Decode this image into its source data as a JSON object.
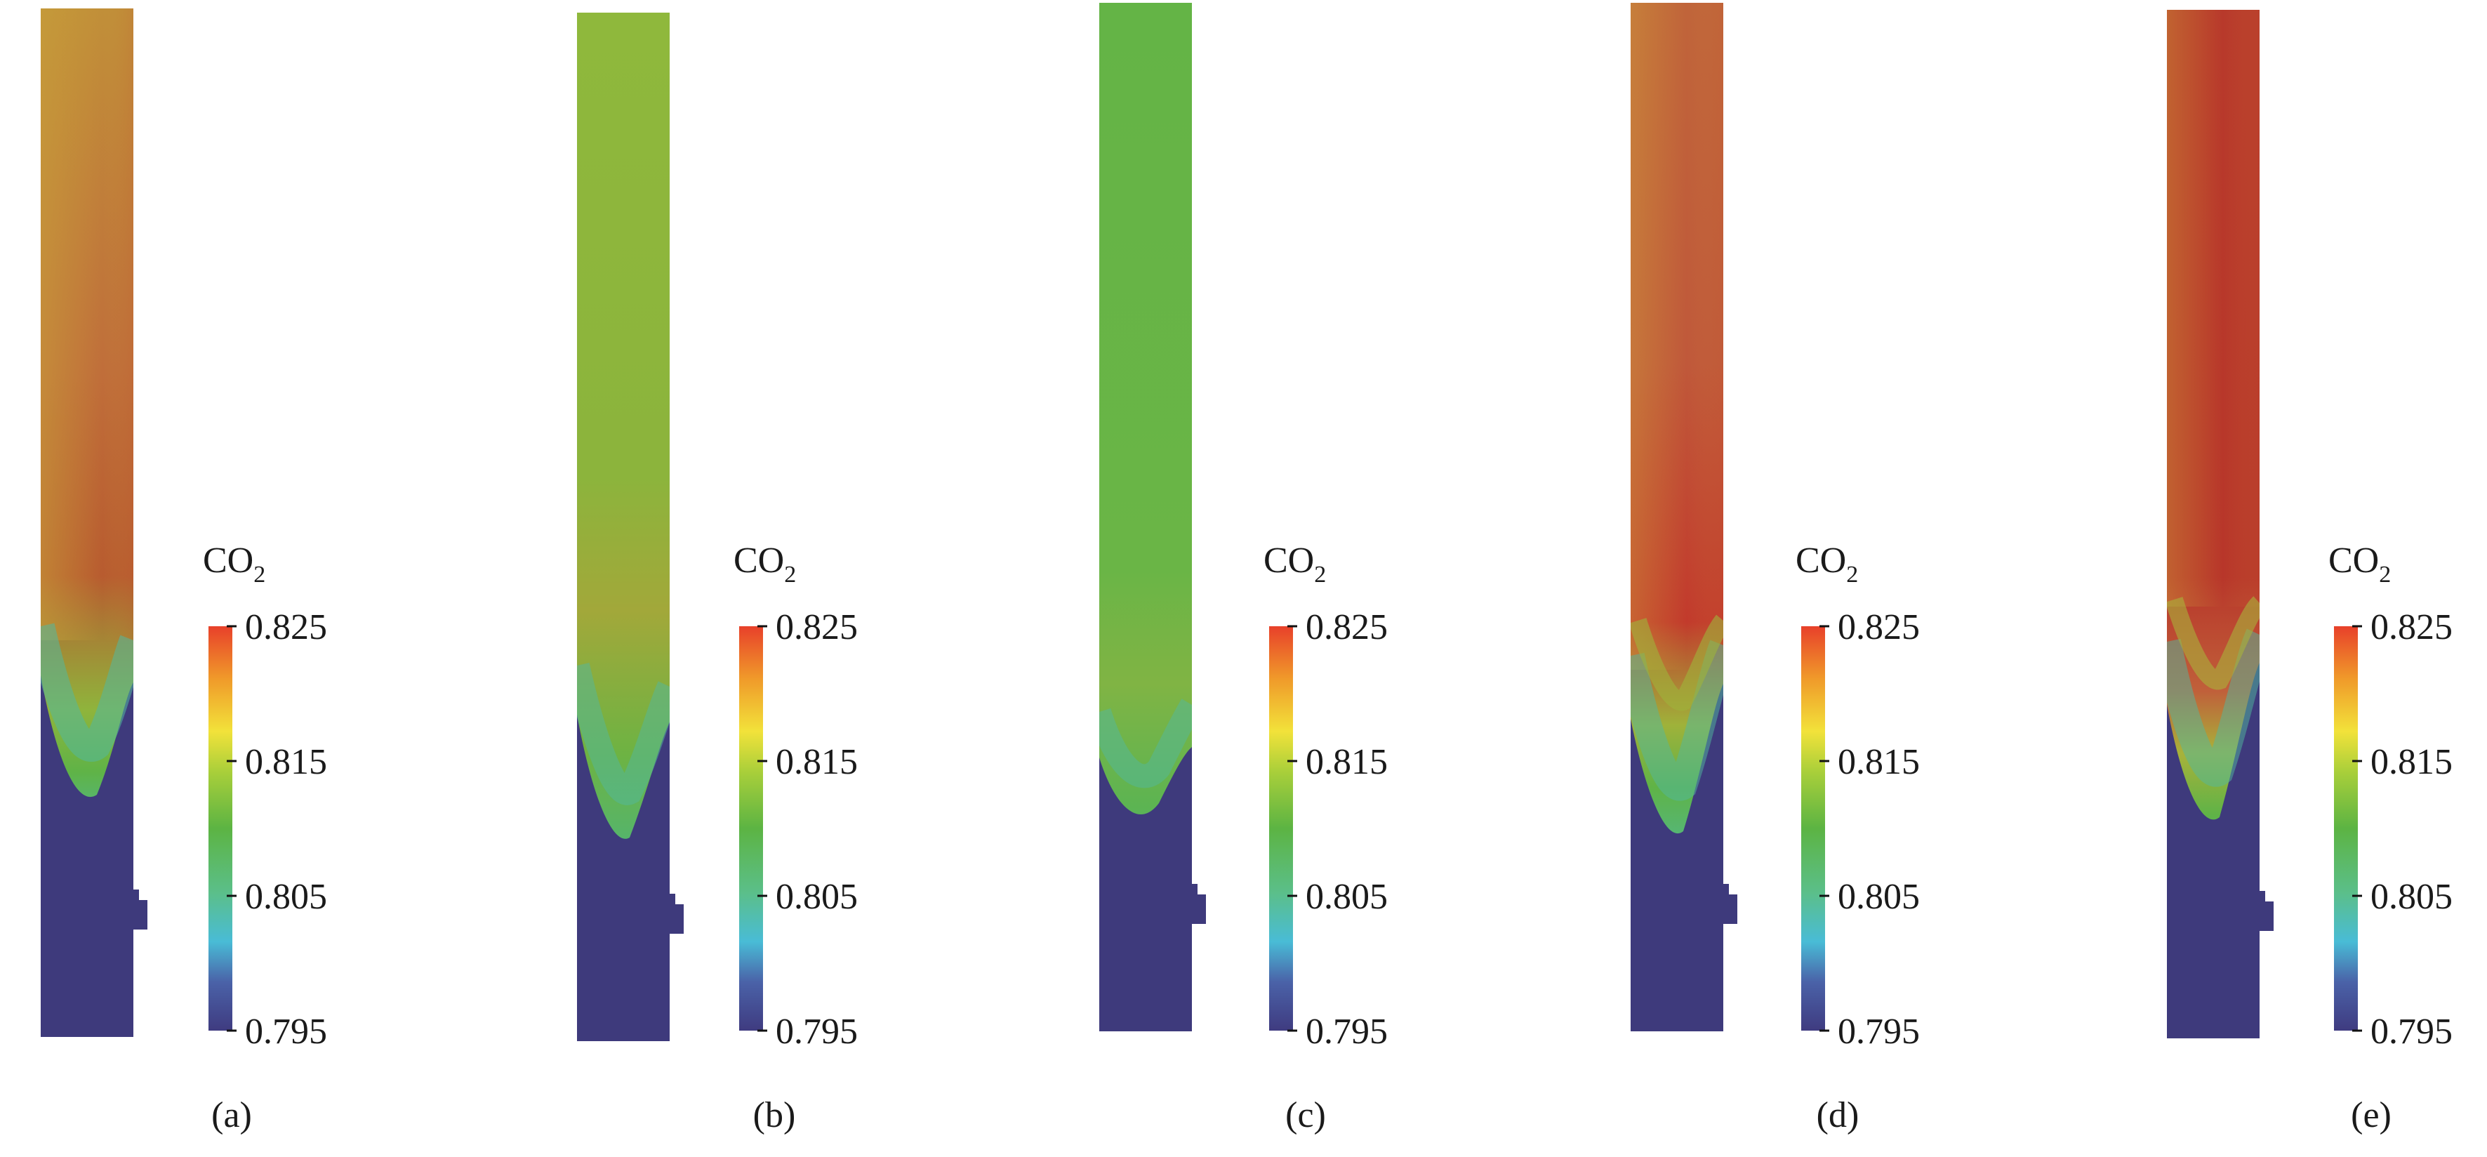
{
  "figure": {
    "colorbar": {
      "title": "CO",
      "title_subscript": "2",
      "ticks": [
        "0.825",
        "0.815",
        "0.805",
        "0.795"
      ],
      "colors": [
        "#e8402a",
        "#f09a2a",
        "#f2e23a",
        "#a9cf3a",
        "#5cb443",
        "#5bbf8a",
        "#49bcd6",
        "#4a62a8",
        "#3f3b80"
      ]
    },
    "colors": {
      "base_blue": "#3e3a7c",
      "green": "#64b446",
      "lime": "#8fb83c",
      "gold": "#c0913a",
      "orange": "#c0603a",
      "red": "#b8372b"
    },
    "panels": [
      {
        "caption": "(a)",
        "top_state": "gold-orange",
        "interface_level": "high"
      },
      {
        "caption": "(b)",
        "top_state": "lime-green",
        "interface_level": "mid"
      },
      {
        "caption": "(c)",
        "top_state": "green",
        "interface_level": "low"
      },
      {
        "caption": "(d)",
        "top_state": "orange-red",
        "interface_level": "mid"
      },
      {
        "caption": "(e)",
        "top_state": "red",
        "interface_level": "high"
      }
    ]
  }
}
